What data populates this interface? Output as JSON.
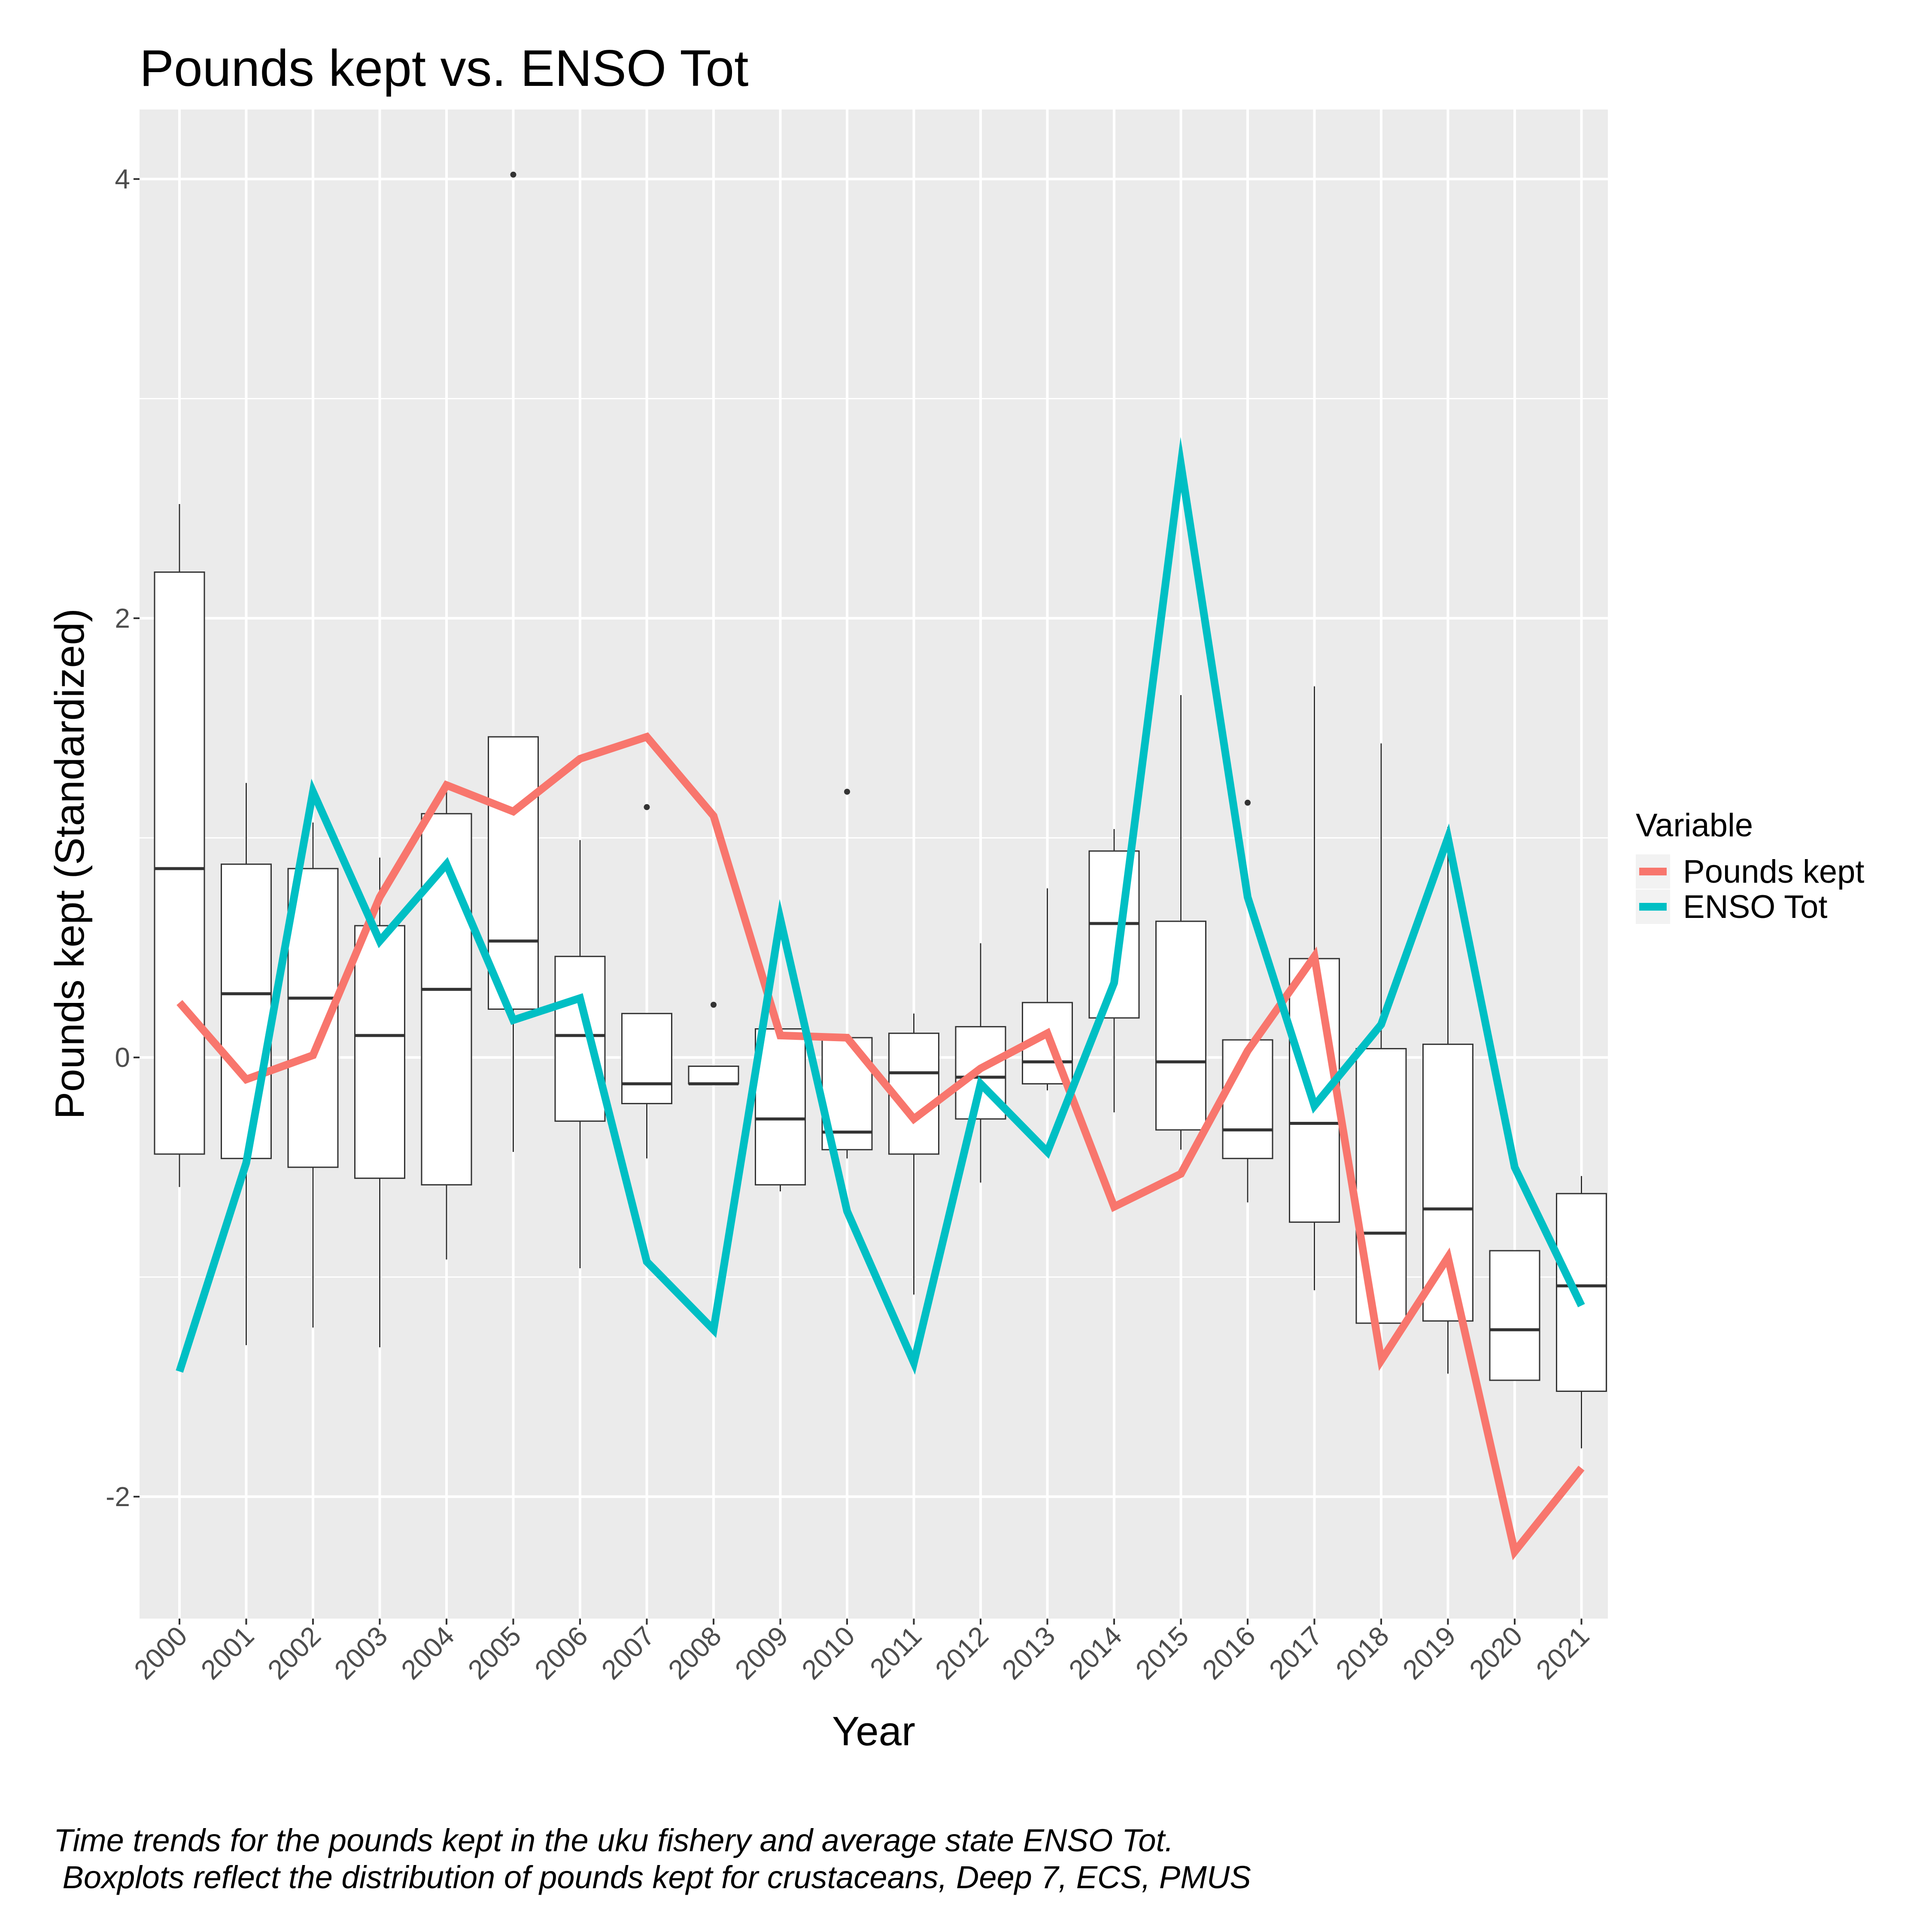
{
  "chart_data": {
    "type": "boxplot+line",
    "title": "Pounds kept vs. ENSO Tot",
    "xlabel": "Year",
    "ylabel": "Pounds kept (Standardized)",
    "ylim": [
      -2.5,
      4.3
    ],
    "y_ticks": [
      -2,
      0,
      2,
      4
    ],
    "grid": true,
    "categories": [
      "2000",
      "2001",
      "2002",
      "2003",
      "2004",
      "2005",
      "2006",
      "2007",
      "2008",
      "2009",
      "2010",
      "2011",
      "2012",
      "2013",
      "2014",
      "2015",
      "2016",
      "2017",
      "2018",
      "2019",
      "2020",
      "2021"
    ],
    "boxes": [
      {
        "year": "2000",
        "whisker_low": -0.59,
        "q1": -0.44,
        "median": 0.86,
        "q3": 2.21,
        "whisker_high": 2.52,
        "outliers": []
      },
      {
        "year": "2001",
        "whisker_low": -1.31,
        "q1": -0.46,
        "median": 0.29,
        "q3": 0.88,
        "whisker_high": 1.25,
        "outliers": []
      },
      {
        "year": "2002",
        "whisker_low": -1.23,
        "q1": -0.5,
        "median": 0.27,
        "q3": 0.86,
        "whisker_high": 1.07,
        "outliers": []
      },
      {
        "year": "2003",
        "whisker_low": -1.32,
        "q1": -0.55,
        "median": 0.1,
        "q3": 0.6,
        "whisker_high": 0.91,
        "outliers": []
      },
      {
        "year": "2004",
        "whisker_low": -0.92,
        "q1": -0.58,
        "median": 0.31,
        "q3": 1.11,
        "whisker_high": 1.24,
        "outliers": []
      },
      {
        "year": "2005",
        "whisker_low": -0.43,
        "q1": 0.22,
        "median": 0.53,
        "q3": 1.46,
        "whisker_high": 1.46,
        "outliers": [
          4.02
        ]
      },
      {
        "year": "2006",
        "whisker_low": -0.96,
        "q1": -0.29,
        "median": 0.1,
        "q3": 0.46,
        "whisker_high": 0.99,
        "outliers": []
      },
      {
        "year": "2007",
        "whisker_low": -0.46,
        "q1": -0.21,
        "median": -0.12,
        "q3": 0.2,
        "whisker_high": 0.2,
        "outliers": [
          1.14
        ]
      },
      {
        "year": "2008",
        "whisker_low": -0.12,
        "q1": -0.12,
        "median": -0.12,
        "q3": -0.04,
        "whisker_high": -0.04,
        "outliers": [
          0.24
        ]
      },
      {
        "year": "2009",
        "whisker_low": -0.61,
        "q1": -0.58,
        "median": -0.28,
        "q3": 0.13,
        "whisker_high": 0.13,
        "outliers": []
      },
      {
        "year": "2010",
        "whisker_low": -0.46,
        "q1": -0.42,
        "median": -0.34,
        "q3": 0.09,
        "whisker_high": 0.09,
        "outliers": [
          1.21
        ]
      },
      {
        "year": "2011",
        "whisker_low": -1.08,
        "q1": -0.44,
        "median": -0.07,
        "q3": 0.11,
        "whisker_high": 0.2,
        "outliers": []
      },
      {
        "year": "2012",
        "whisker_low": -0.57,
        "q1": -0.28,
        "median": -0.09,
        "q3": 0.14,
        "whisker_high": 0.52,
        "outliers": []
      },
      {
        "year": "2013",
        "whisker_low": -0.15,
        "q1": -0.12,
        "median": -0.02,
        "q3": 0.25,
        "whisker_high": 0.77,
        "outliers": []
      },
      {
        "year": "2014",
        "whisker_low": -0.25,
        "q1": 0.18,
        "median": 0.61,
        "q3": 0.94,
        "whisker_high": 1.04,
        "outliers": []
      },
      {
        "year": "2015",
        "whisker_low": -0.42,
        "q1": -0.33,
        "median": -0.02,
        "q3": 0.62,
        "whisker_high": 1.65,
        "outliers": []
      },
      {
        "year": "2016",
        "whisker_low": -0.66,
        "q1": -0.46,
        "median": -0.33,
        "q3": 0.08,
        "whisker_high": 0.08,
        "outliers": [
          1.16
        ]
      },
      {
        "year": "2017",
        "whisker_low": -1.06,
        "q1": -0.75,
        "median": -0.3,
        "q3": 0.45,
        "whisker_high": 1.69,
        "outliers": []
      },
      {
        "year": "2018",
        "whisker_low": -1.21,
        "q1": -1.21,
        "median": -0.8,
        "q3": 0.04,
        "whisker_high": 1.43,
        "outliers": []
      },
      {
        "year": "2019",
        "whisker_low": -1.44,
        "q1": -1.2,
        "median": -0.69,
        "q3": 0.06,
        "whisker_high": 1.05,
        "outliers": []
      },
      {
        "year": "2020",
        "whisker_low": -1.47,
        "q1": -1.47,
        "median": -1.24,
        "q3": -0.88,
        "whisker_high": -0.88,
        "outliers": []
      },
      {
        "year": "2021",
        "whisker_low": -1.78,
        "q1": -1.52,
        "median": -1.04,
        "q3": -0.62,
        "whisker_high": -0.54,
        "outliers": []
      }
    ],
    "legend_title": "Variable",
    "legend_position": "right",
    "series": [
      {
        "name": "Pounds kept",
        "color": "#F8766D",
        "values": [
          0.25,
          -0.1,
          0.01,
          0.73,
          1.24,
          1.12,
          1.36,
          1.46,
          1.1,
          0.1,
          0.09,
          -0.28,
          -0.05,
          0.11,
          -0.68,
          -0.53,
          0.03,
          0.46,
          -1.38,
          -0.91,
          -2.25,
          -1.87
        ]
      },
      {
        "name": "ENSO Tot",
        "color": "#00BFC4",
        "values": [
          -1.43,
          -0.48,
          1.21,
          0.53,
          0.88,
          0.17,
          0.27,
          -0.93,
          -1.24,
          0.63,
          -0.7,
          -1.39,
          -0.12,
          -0.43,
          0.34,
          2.7,
          0.73,
          -0.22,
          0.15,
          1.0,
          -0.5,
          -1.13
        ]
      }
    ]
  },
  "caption": {
    "line1": "Time trends for the pounds kept in the uku fishery and average state ENSO Tot.",
    "line2": " Boxplots reflect the distribution of pounds kept for crustaceans, Deep 7, ECS, PMUS"
  }
}
